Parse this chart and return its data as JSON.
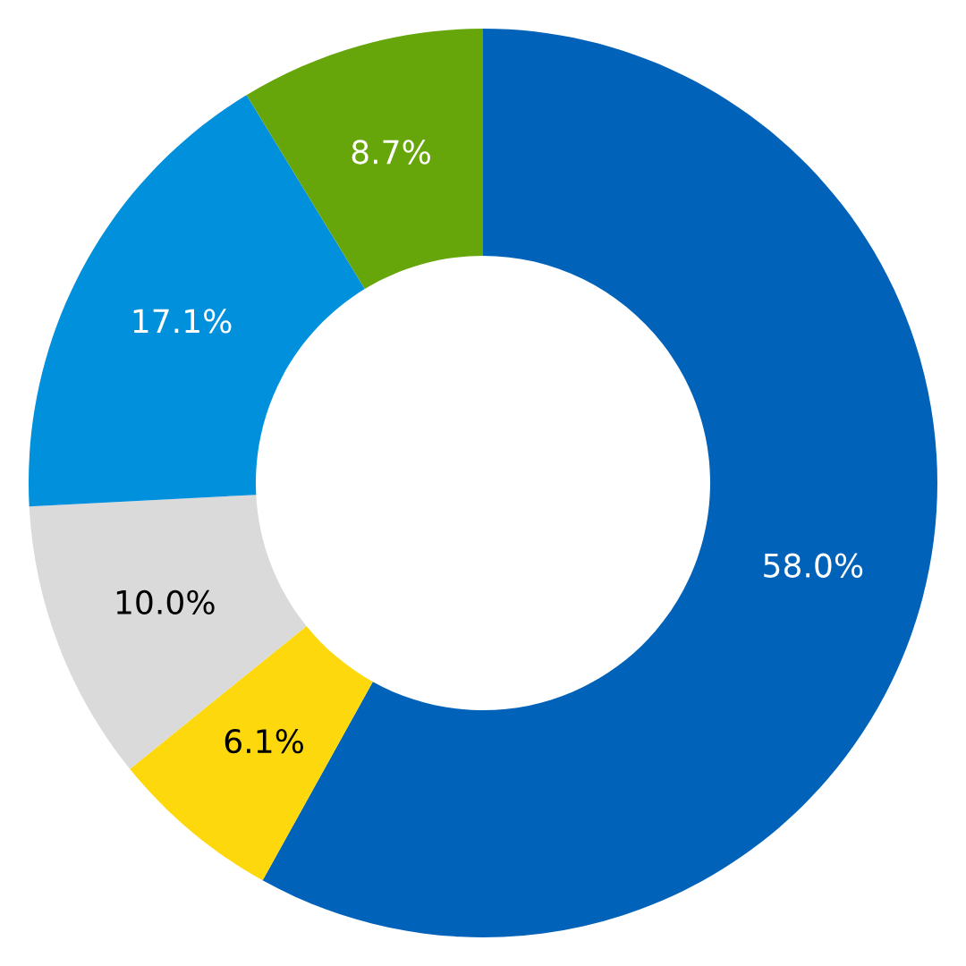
{
  "chart_data": {
    "type": "donut",
    "categories": [
      null,
      null,
      null,
      null,
      null
    ],
    "values": [
      58.0,
      6.1,
      10.0,
      17.1,
      8.7
    ],
    "colors": [
      "#0062b8",
      "#fcd80c",
      "#dadada",
      "#0090dc",
      "#66a60a"
    ],
    "value_labels": [
      "58.0%",
      "6.1%",
      "10.0%",
      "17.1%",
      "8.7%"
    ],
    "legend": false
  }
}
